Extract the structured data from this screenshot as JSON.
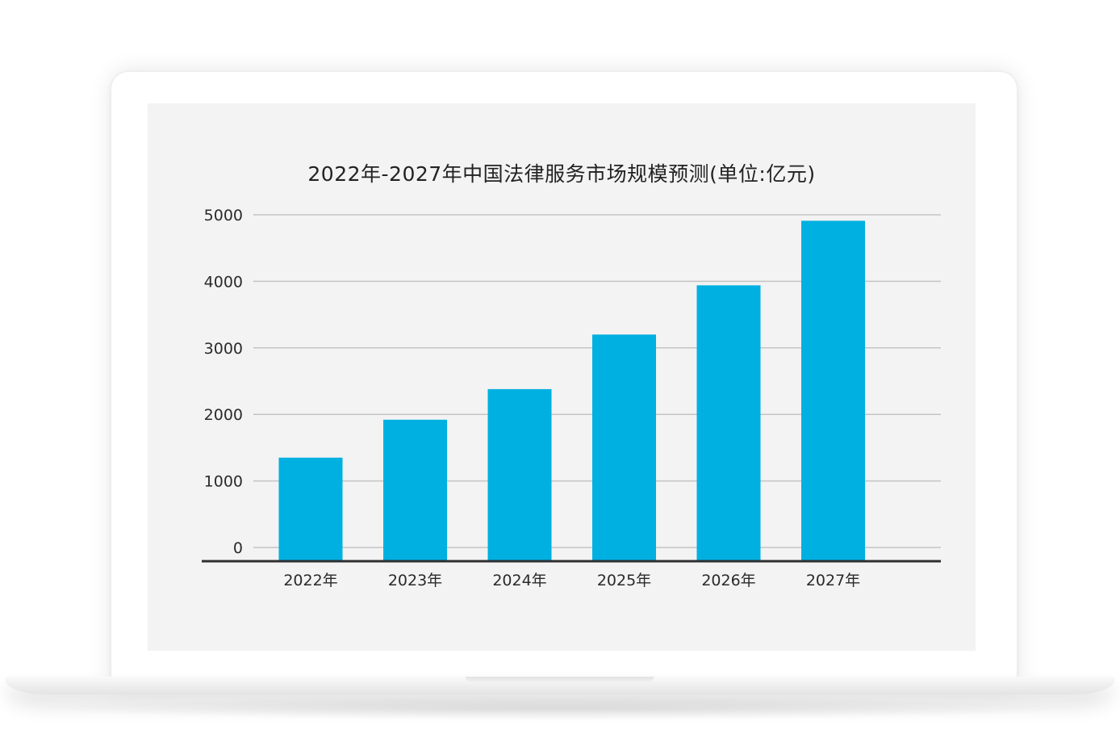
{
  "colors": {
    "bar": "#00b0e1",
    "grid": "#c4c4c4",
    "axis": "#2f2f2f",
    "screen_bg": "#f3f3f3"
  },
  "chart_data": {
    "type": "bar",
    "title": "2022年-2027年中国法律服务市场规模预测(单位:亿元)",
    "categories": [
      "2022年",
      "2023年",
      "2024年",
      "2025年",
      "2026年",
      "2027年"
    ],
    "values": [
      1350,
      1920,
      2380,
      3200,
      3940,
      4910
    ],
    "ylim": [
      0,
      5000
    ],
    "yticks": [
      0,
      1000,
      2000,
      3000,
      4000,
      5000
    ],
    "xlabel": "",
    "ylabel": "",
    "grid": true,
    "legend": "none"
  }
}
